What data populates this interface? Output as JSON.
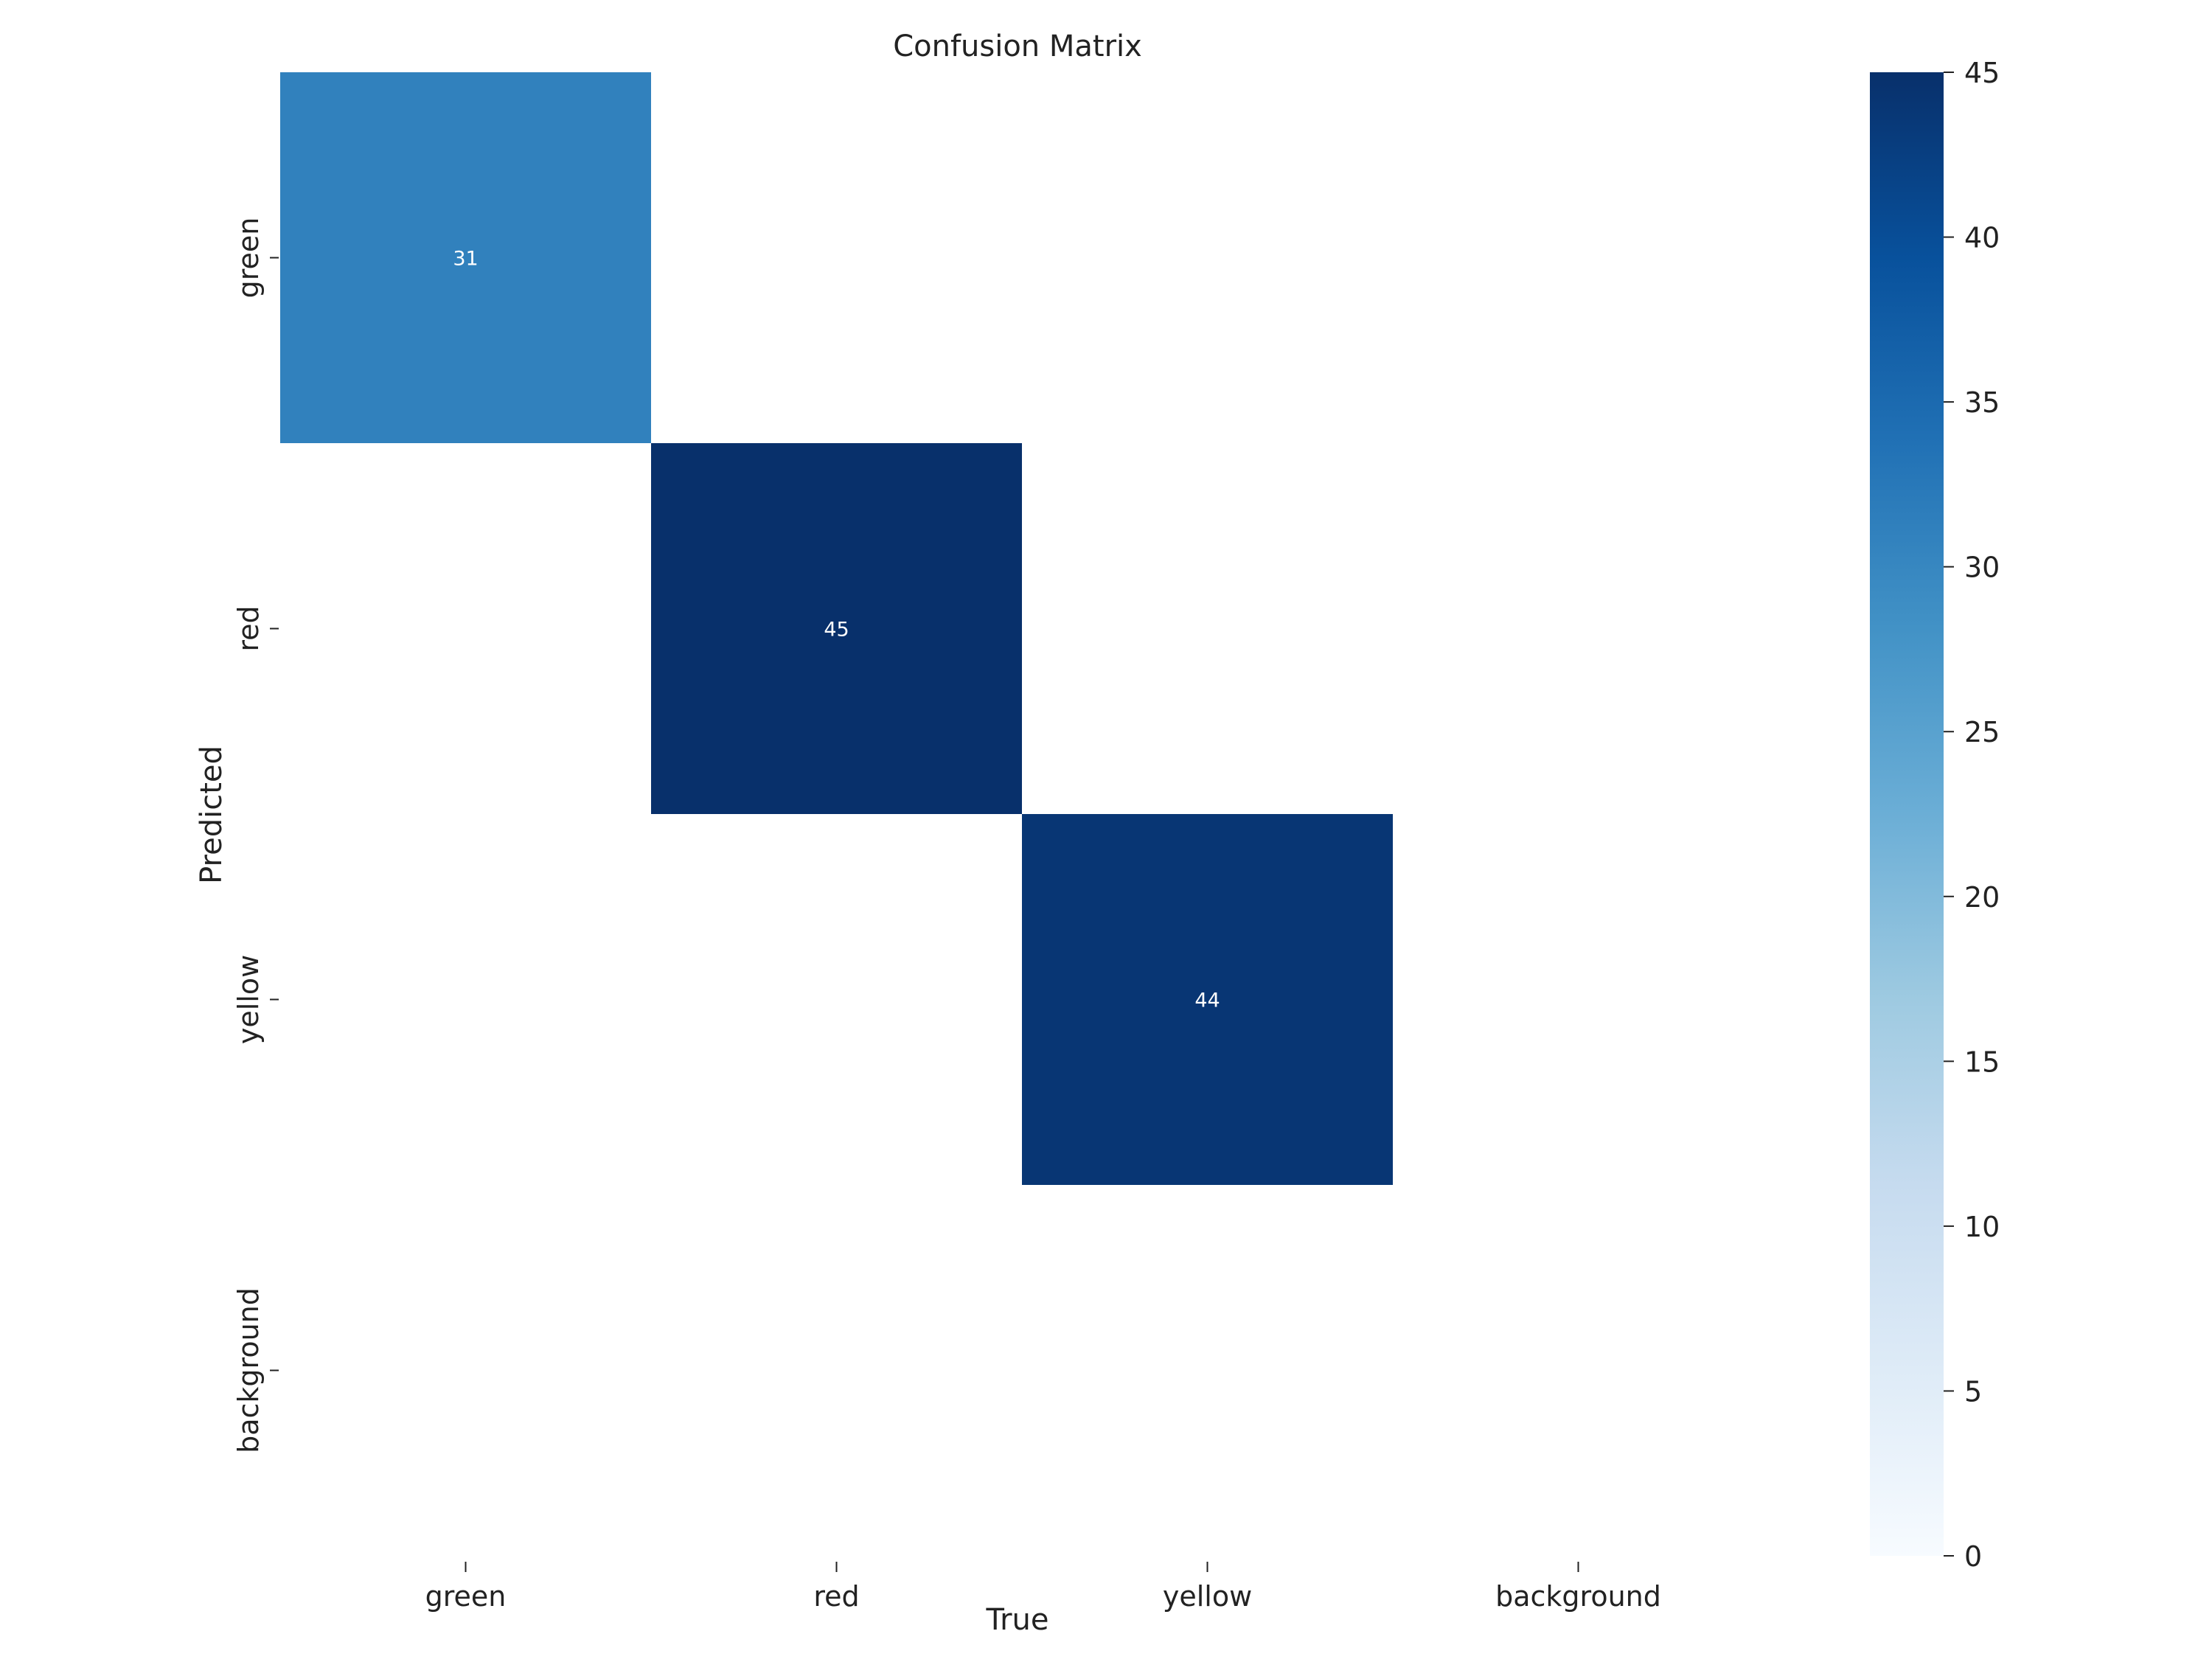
{
  "chart_data": {
    "type": "heatmap",
    "title": "Confusion Matrix",
    "xlabel": "True",
    "ylabel": "Predicted",
    "x_categories": [
      "green",
      "red",
      "yellow",
      "background"
    ],
    "y_categories": [
      "green",
      "red",
      "yellow",
      "background"
    ],
    "values": [
      [
        31,
        null,
        null,
        null
      ],
      [
        null,
        45,
        null,
        null
      ],
      [
        null,
        null,
        44,
        null
      ],
      [
        null,
        null,
        null,
        null
      ]
    ],
    "colorbar": {
      "range": [
        0,
        45
      ],
      "ticks": [
        "0",
        "5",
        "10",
        "15",
        "20",
        "25",
        "30",
        "35",
        "40",
        "45"
      ],
      "colormap": "Blues"
    },
    "grid": false
  },
  "colors": {
    "blues_low": "#f7fbff",
    "blues_high": "#08306b",
    "cell_text": "#ffffff",
    "text": "#222222",
    "background": "#ffffff"
  }
}
